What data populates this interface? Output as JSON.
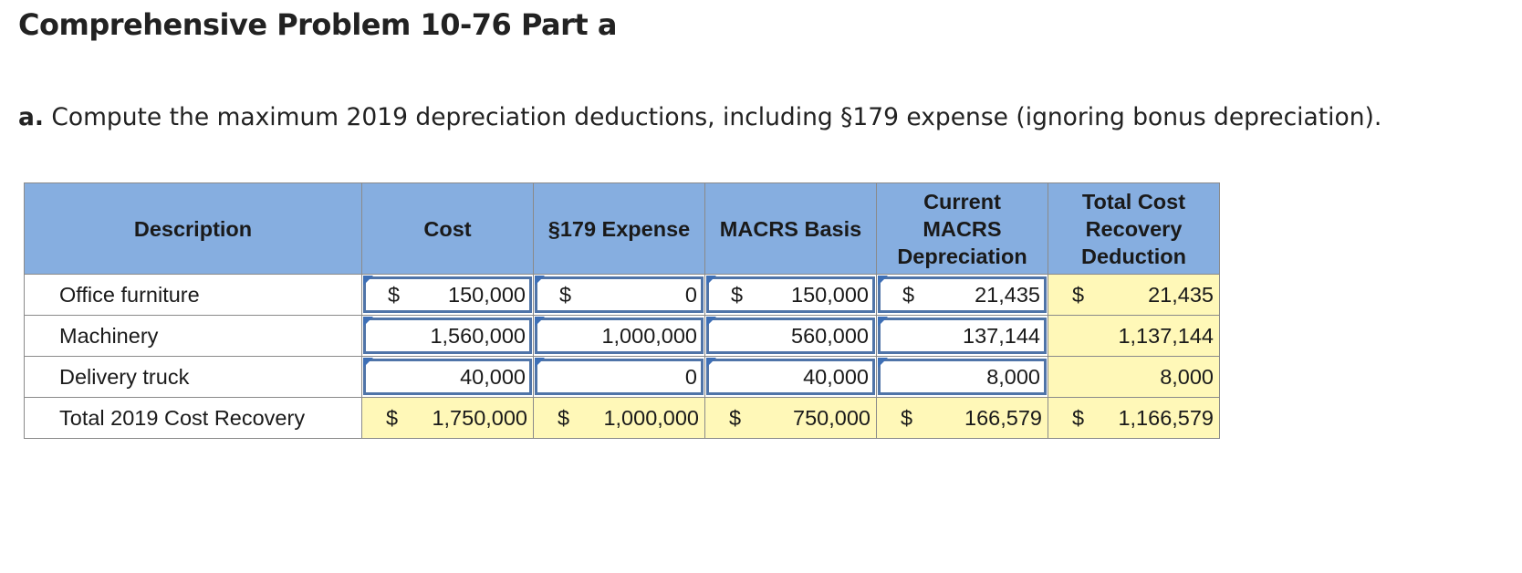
{
  "title": "Comprehensive Problem 10-76 Part a",
  "question": {
    "prefix": "a.",
    "text": "Compute the maximum 2019 depreciation deductions, including §179 expense (ignoring bonus depreciation)."
  },
  "table": {
    "headers": {
      "description": "Description",
      "cost": "Cost",
      "s179": "§179 Expense",
      "macrs_basis": "MACRS Basis",
      "current_macrs": "Current MACRS Depreciation",
      "total_cost_recovery": "Total Cost Recovery Deduction"
    },
    "rows": [
      {
        "description": "Office furniture",
        "cost_cur": "$",
        "cost": "150,000",
        "s179_cur": "$",
        "s179": "0",
        "basis_cur": "$",
        "basis": "150,000",
        "macrs_cur": "$",
        "macrs": "21,435",
        "total_cur": "$",
        "total": "21,435"
      },
      {
        "description": "Machinery",
        "cost_cur": "",
        "cost": "1,560,000",
        "s179_cur": "",
        "s179": "1,000,000",
        "basis_cur": "",
        "basis": "560,000",
        "macrs_cur": "",
        "macrs": "137,144",
        "total_cur": "",
        "total": "1,137,144"
      },
      {
        "description": "Delivery truck",
        "cost_cur": "",
        "cost": "40,000",
        "s179_cur": "",
        "s179": "0",
        "basis_cur": "",
        "basis": "40,000",
        "macrs_cur": "",
        "macrs": "8,000",
        "total_cur": "",
        "total": "8,000"
      }
    ],
    "total_row": {
      "description": "Total 2019 Cost Recovery",
      "cost_cur": "$",
      "cost": "1,750,000",
      "s179_cur": "$",
      "s179": "1,000,000",
      "basis_cur": "$",
      "basis": "750,000",
      "macrs_cur": "$",
      "macrs": "166,579",
      "total_cur": "$",
      "total": "1,166,579"
    }
  },
  "colors": {
    "header_bg": "#86aee0",
    "computed_bg": "#fff8b8",
    "input_border": "#4f74a8"
  }
}
